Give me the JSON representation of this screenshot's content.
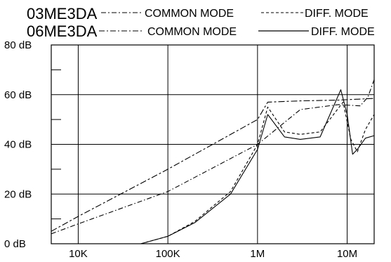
{
  "chart_data": {
    "type": "line",
    "title": "",
    "xlabel": "",
    "ylabel": "",
    "x_scale": "log",
    "xlim": [
      5000,
      20000000
    ],
    "ylim": [
      0,
      80
    ],
    "x_ticks": [
      {
        "value": 10000,
        "label": "10K"
      },
      {
        "value": 100000,
        "label": "100K"
      },
      {
        "value": 1000000,
        "label": "1M"
      },
      {
        "value": 10000000,
        "label": "10M"
      }
    ],
    "y_ticks": [
      {
        "value": 0,
        "label": "0 dB"
      },
      {
        "value": 20,
        "label": "20 dB"
      },
      {
        "value": 40,
        "label": "40 dB"
      },
      {
        "value": 60,
        "label": "60 dB"
      },
      {
        "value": 80,
        "label": "80 dB"
      }
    ],
    "grid": true,
    "legend_position": "top",
    "legend": [
      {
        "group": "03ME3DA",
        "entries": [
          "COMMON MODE",
          "DIFF. MODE"
        ]
      },
      {
        "group": "06ME3DA",
        "entries": [
          "COMMON MODE",
          "DIFF. MODE"
        ]
      }
    ],
    "series": [
      {
        "name": "03ME3DA COMMON MODE",
        "style": "long-short-dash",
        "x": [
          5000,
          10000,
          100000,
          1000000,
          1300000,
          3000000,
          8000000,
          20000000
        ],
        "y": [
          5,
          11,
          30,
          50,
          57,
          57.5,
          57.8,
          58.5
        ]
      },
      {
        "name": "03ME3DA DIFF. MODE",
        "style": "short-dash",
        "x": [
          50000,
          100000,
          200000,
          500000,
          1000000,
          1300000,
          2000000,
          3000000,
          5000000,
          9000000,
          11000000,
          13000000,
          16000000,
          20000000
        ],
        "y": [
          0,
          3,
          9,
          21,
          40,
          55,
          45,
          44,
          45,
          57,
          42,
          37,
          46,
          52
        ]
      },
      {
        "name": "06ME3DA COMMON MODE",
        "style": "dash-dot",
        "x": [
          5000,
          10000,
          100000,
          1000000,
          3000000,
          8000000,
          14000000,
          17000000,
          20000000
        ],
        "y": [
          4,
          8,
          21,
          40,
          54,
          56,
          55.5,
          59,
          66
        ]
      },
      {
        "name": "06ME3DA DIFF. MODE",
        "style": "solid",
        "x": [
          50000,
          100000,
          200000,
          500000,
          1000000,
          1300000,
          2000000,
          3000000,
          5000000,
          8500000,
          10000000,
          11500000,
          13000000,
          16000000,
          20000000
        ],
        "y": [
          0,
          3,
          8.5,
          20,
          38,
          52,
          43,
          42,
          43,
          62,
          52,
          36,
          38,
          42.5,
          43.5
        ]
      }
    ]
  }
}
